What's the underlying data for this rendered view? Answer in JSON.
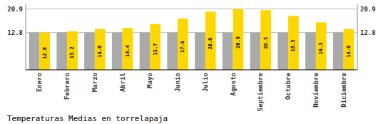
{
  "chart_data": {
    "type": "bar",
    "title": "Temperaturas Medias en torrelapaja",
    "categories": [
      "Enero",
      "Febrero",
      "Marzo",
      "Abril",
      "Mayo",
      "Junio",
      "Julio",
      "Agosto",
      "Septiembre",
      "Octubre",
      "Noviembre",
      "Diciembre"
    ],
    "series": [
      {
        "color": "#AAAAAA",
        "values": [
          12.8,
          12.8,
          12.8,
          12.8,
          12.8,
          12.8,
          12.8,
          12.8,
          12.8,
          12.8,
          12.8,
          12.8
        ]
      },
      {
        "color": "#FFD700",
        "data_labels": true,
        "values": [
          12.8,
          13.2,
          14.0,
          14.4,
          15.7,
          17.6,
          20.0,
          20.9,
          20.5,
          18.5,
          16.3,
          14.0
        ],
        "value_labels": [
          "12.8",
          "13.2",
          "14.0",
          "14.4",
          "15.7",
          "17.6",
          "20.0",
          "20.9",
          "20.5",
          "18.5",
          "16.3",
          "14.0"
        ]
      }
    ],
    "ylim": [
      0,
      22.5
    ],
    "yticks": [
      12.8,
      20.9
    ],
    "y2lim": [
      0,
      22.5
    ],
    "y2ticks": [
      12.8,
      20.9
    ],
    "grid": true
  }
}
